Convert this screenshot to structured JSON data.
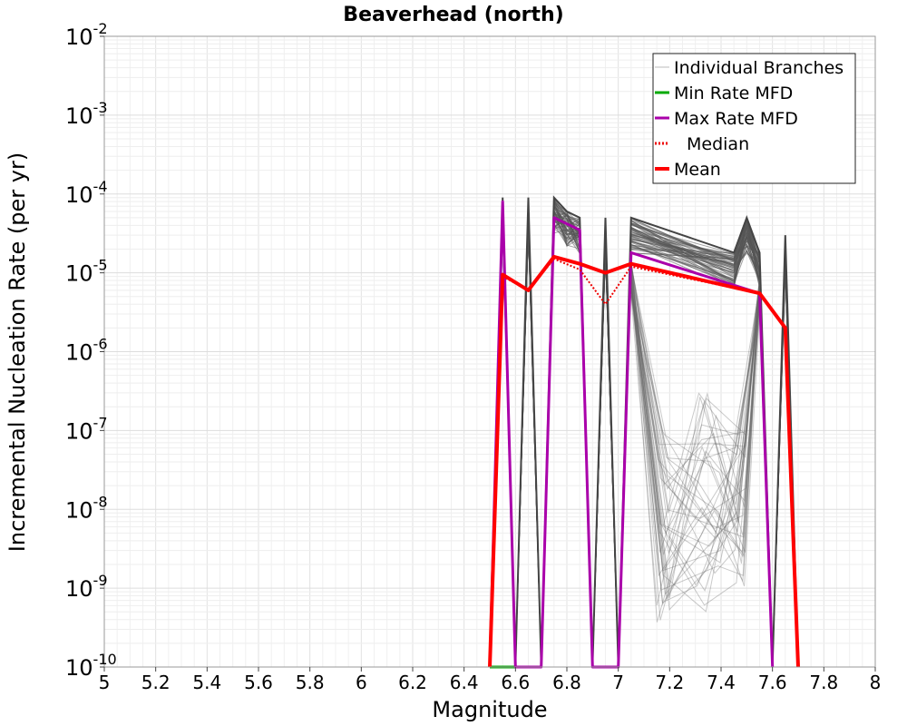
{
  "chart_data": {
    "type": "line",
    "title": "Beaverhead (north)",
    "xlabel": "Magnitude",
    "ylabel": "Incremental Nucleation Rate (per yr)",
    "xlim": [
      5,
      8
    ],
    "ylim": [
      1e-10,
      0.01
    ],
    "yscale": "log",
    "grid": true,
    "legend_position": "top-right",
    "x_ticks": [
      "5",
      "5.2",
      "5.4",
      "5.6",
      "5.8",
      "6",
      "6.2",
      "6.4",
      "6.6",
      "6.8",
      "7",
      "7.2",
      "7.4",
      "7.6",
      "7.8",
      "8"
    ],
    "y_ticks": [
      {
        "base": "10",
        "exp": "-10"
      },
      {
        "base": "10",
        "exp": "-9"
      },
      {
        "base": "10",
        "exp": "-8"
      },
      {
        "base": "10",
        "exp": "-7"
      },
      {
        "base": "10",
        "exp": "-6"
      },
      {
        "base": "10",
        "exp": "-5"
      },
      {
        "base": "10",
        "exp": "-4"
      },
      {
        "base": "10",
        "exp": "-3"
      },
      {
        "base": "10",
        "exp": "-2"
      }
    ],
    "legend": [
      {
        "label": "Individual Branches",
        "color": "#bbbbbb",
        "style": "solid"
      },
      {
        "label": "Min Rate MFD",
        "color": "#00aa00",
        "style": "solid"
      },
      {
        "label": "Max Rate MFD",
        "color": "#aa00aa",
        "style": "solid"
      },
      {
        "label": "Median",
        "color": "#ee0000",
        "style": "dotted"
      },
      {
        "label": "Mean",
        "color": "#ff0000",
        "style": "solid"
      }
    ],
    "series": [
      {
        "name": "Individual Branches (upper envelope)",
        "color": "#555555",
        "x": [
          6.5,
          6.55,
          6.6,
          6.65,
          6.7,
          6.75,
          6.8,
          6.85,
          6.9,
          6.95,
          7.0,
          7.05,
          7.45,
          7.5,
          7.55,
          7.6,
          7.65,
          7.7
        ],
        "values": [
          1e-10,
          9e-05,
          1e-10,
          9e-05,
          1e-10,
          9e-05,
          6e-05,
          5e-05,
          1e-10,
          5e-05,
          1e-10,
          5e-05,
          1.8e-05,
          5e-05,
          1.8e-05,
          1e-10,
          3e-05,
          1e-10
        ]
      },
      {
        "name": "Min Rate MFD",
        "color": "#00aa00",
        "x": [
          6.5,
          6.55,
          6.6
        ],
        "values": [
          1e-10,
          1e-10,
          1e-10
        ]
      },
      {
        "name": "Max Rate MFD",
        "color": "#aa00aa",
        "x": [
          6.5,
          6.55,
          6.6,
          6.7,
          6.75,
          6.85,
          6.9,
          7.0,
          7.05,
          7.55,
          7.6
        ],
        "values": [
          1e-10,
          8e-05,
          1e-10,
          1e-10,
          5e-05,
          3.5e-05,
          1e-10,
          1e-10,
          1.8e-05,
          5.5e-06,
          1e-10
        ]
      },
      {
        "name": "Median",
        "color": "#ee0000",
        "x": [
          6.55,
          6.65,
          6.75,
          6.85,
          6.95,
          7.05,
          7.55,
          7.65
        ],
        "values": [
          9e-06,
          6e-06,
          1.5e-05,
          1.1e-05,
          4e-06,
          1.2e-05,
          5.5e-06,
          2e-06
        ]
      },
      {
        "name": "Mean",
        "color": "#ff0000",
        "x": [
          6.5,
          6.55,
          6.65,
          6.75,
          6.85,
          6.95,
          7.05,
          7.55,
          7.65,
          7.7
        ],
        "values": [
          1e-10,
          9.5e-06,
          6e-06,
          1.6e-05,
          1.3e-05,
          1e-05,
          1.3e-05,
          5.5e-06,
          2e-06,
          1e-10
        ]
      }
    ]
  }
}
